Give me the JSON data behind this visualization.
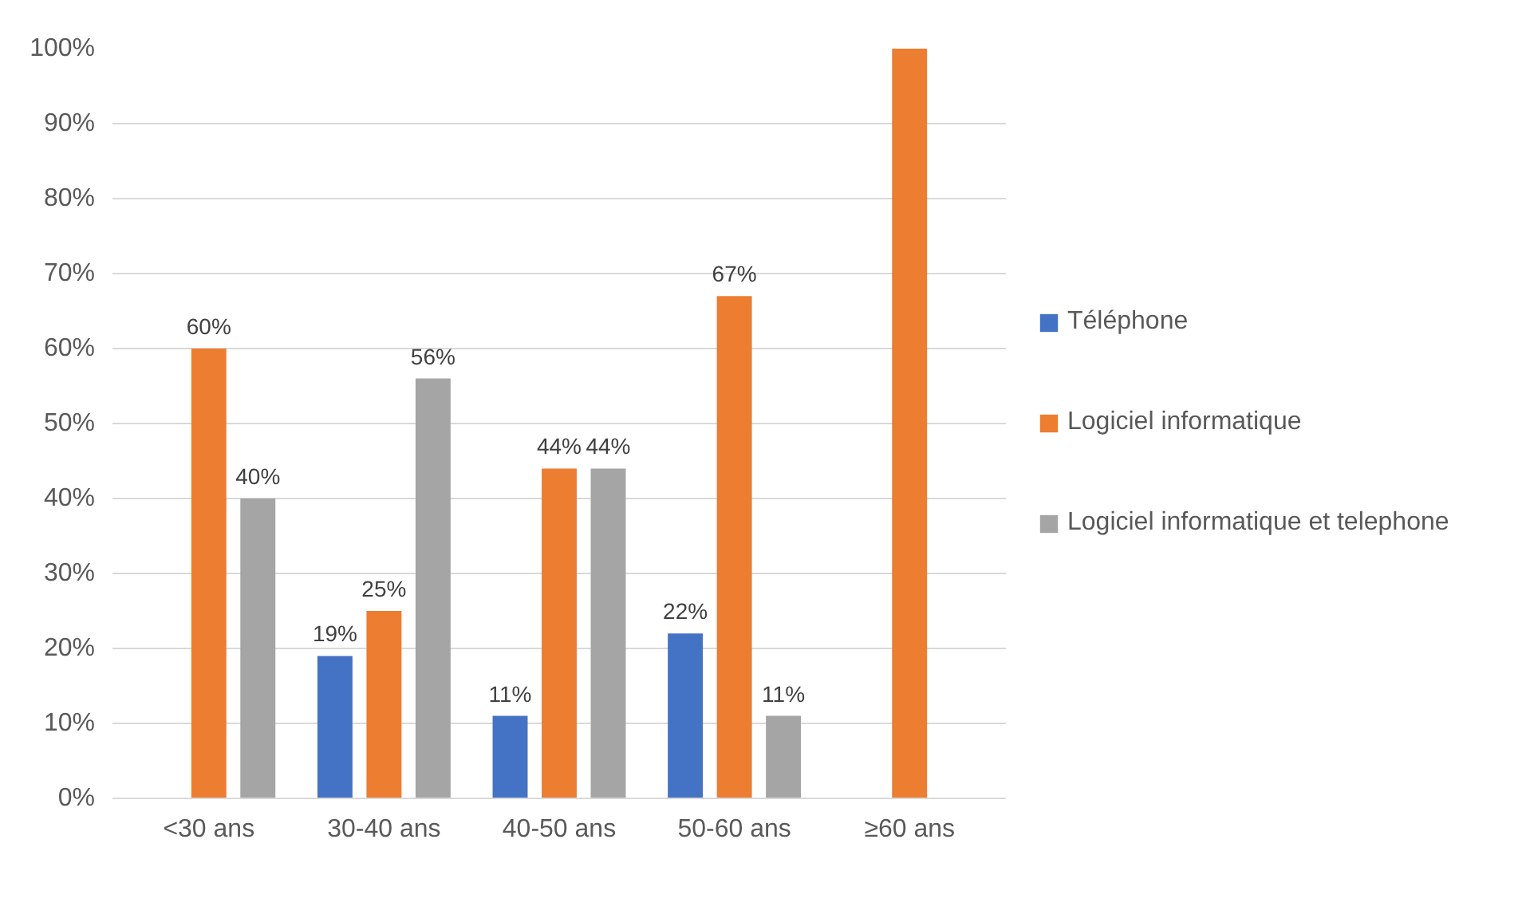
{
  "chart_data": {
    "type": "bar",
    "categories": [
      "<30 ans",
      "30-40 ans",
      "40-50 ans",
      "50-60 ans",
      "≥60 ans"
    ],
    "series": [
      {
        "name": "Téléphone",
        "color": "#4472c4",
        "values": [
          null,
          19,
          11,
          22,
          null
        ],
        "value_labels": [
          null,
          "19%",
          "11%",
          "22%",
          null
        ]
      },
      {
        "name": "Logiciel informatique",
        "color": "#ed7d31",
        "values": [
          60,
          25,
          44,
          67,
          100
        ],
        "value_labels": [
          "60%",
          "25%",
          "44%",
          "67%",
          null
        ]
      },
      {
        "name": "Logiciel informatique et telephone",
        "color": "#a5a5a5",
        "values": [
          40,
          56,
          44,
          11,
          null
        ],
        "value_labels": [
          "40%",
          "56%",
          "44%",
          "11%",
          null
        ]
      }
    ],
    "ylim": [
      0,
      100
    ],
    "yticks": [
      {
        "value": 0,
        "label": "0%"
      },
      {
        "value": 10,
        "label": "10%"
      },
      {
        "value": 20,
        "label": "20%"
      },
      {
        "value": 30,
        "label": "30%"
      },
      {
        "value": 40,
        "label": "40%"
      },
      {
        "value": 50,
        "label": "50%"
      },
      {
        "value": 60,
        "label": "60%"
      },
      {
        "value": 70,
        "label": "70%"
      },
      {
        "value": 80,
        "label": "80%"
      },
      {
        "value": 90,
        "label": "90%"
      },
      {
        "value": 100,
        "label": "100%"
      }
    ],
    "grid": "y",
    "legend": "right"
  }
}
